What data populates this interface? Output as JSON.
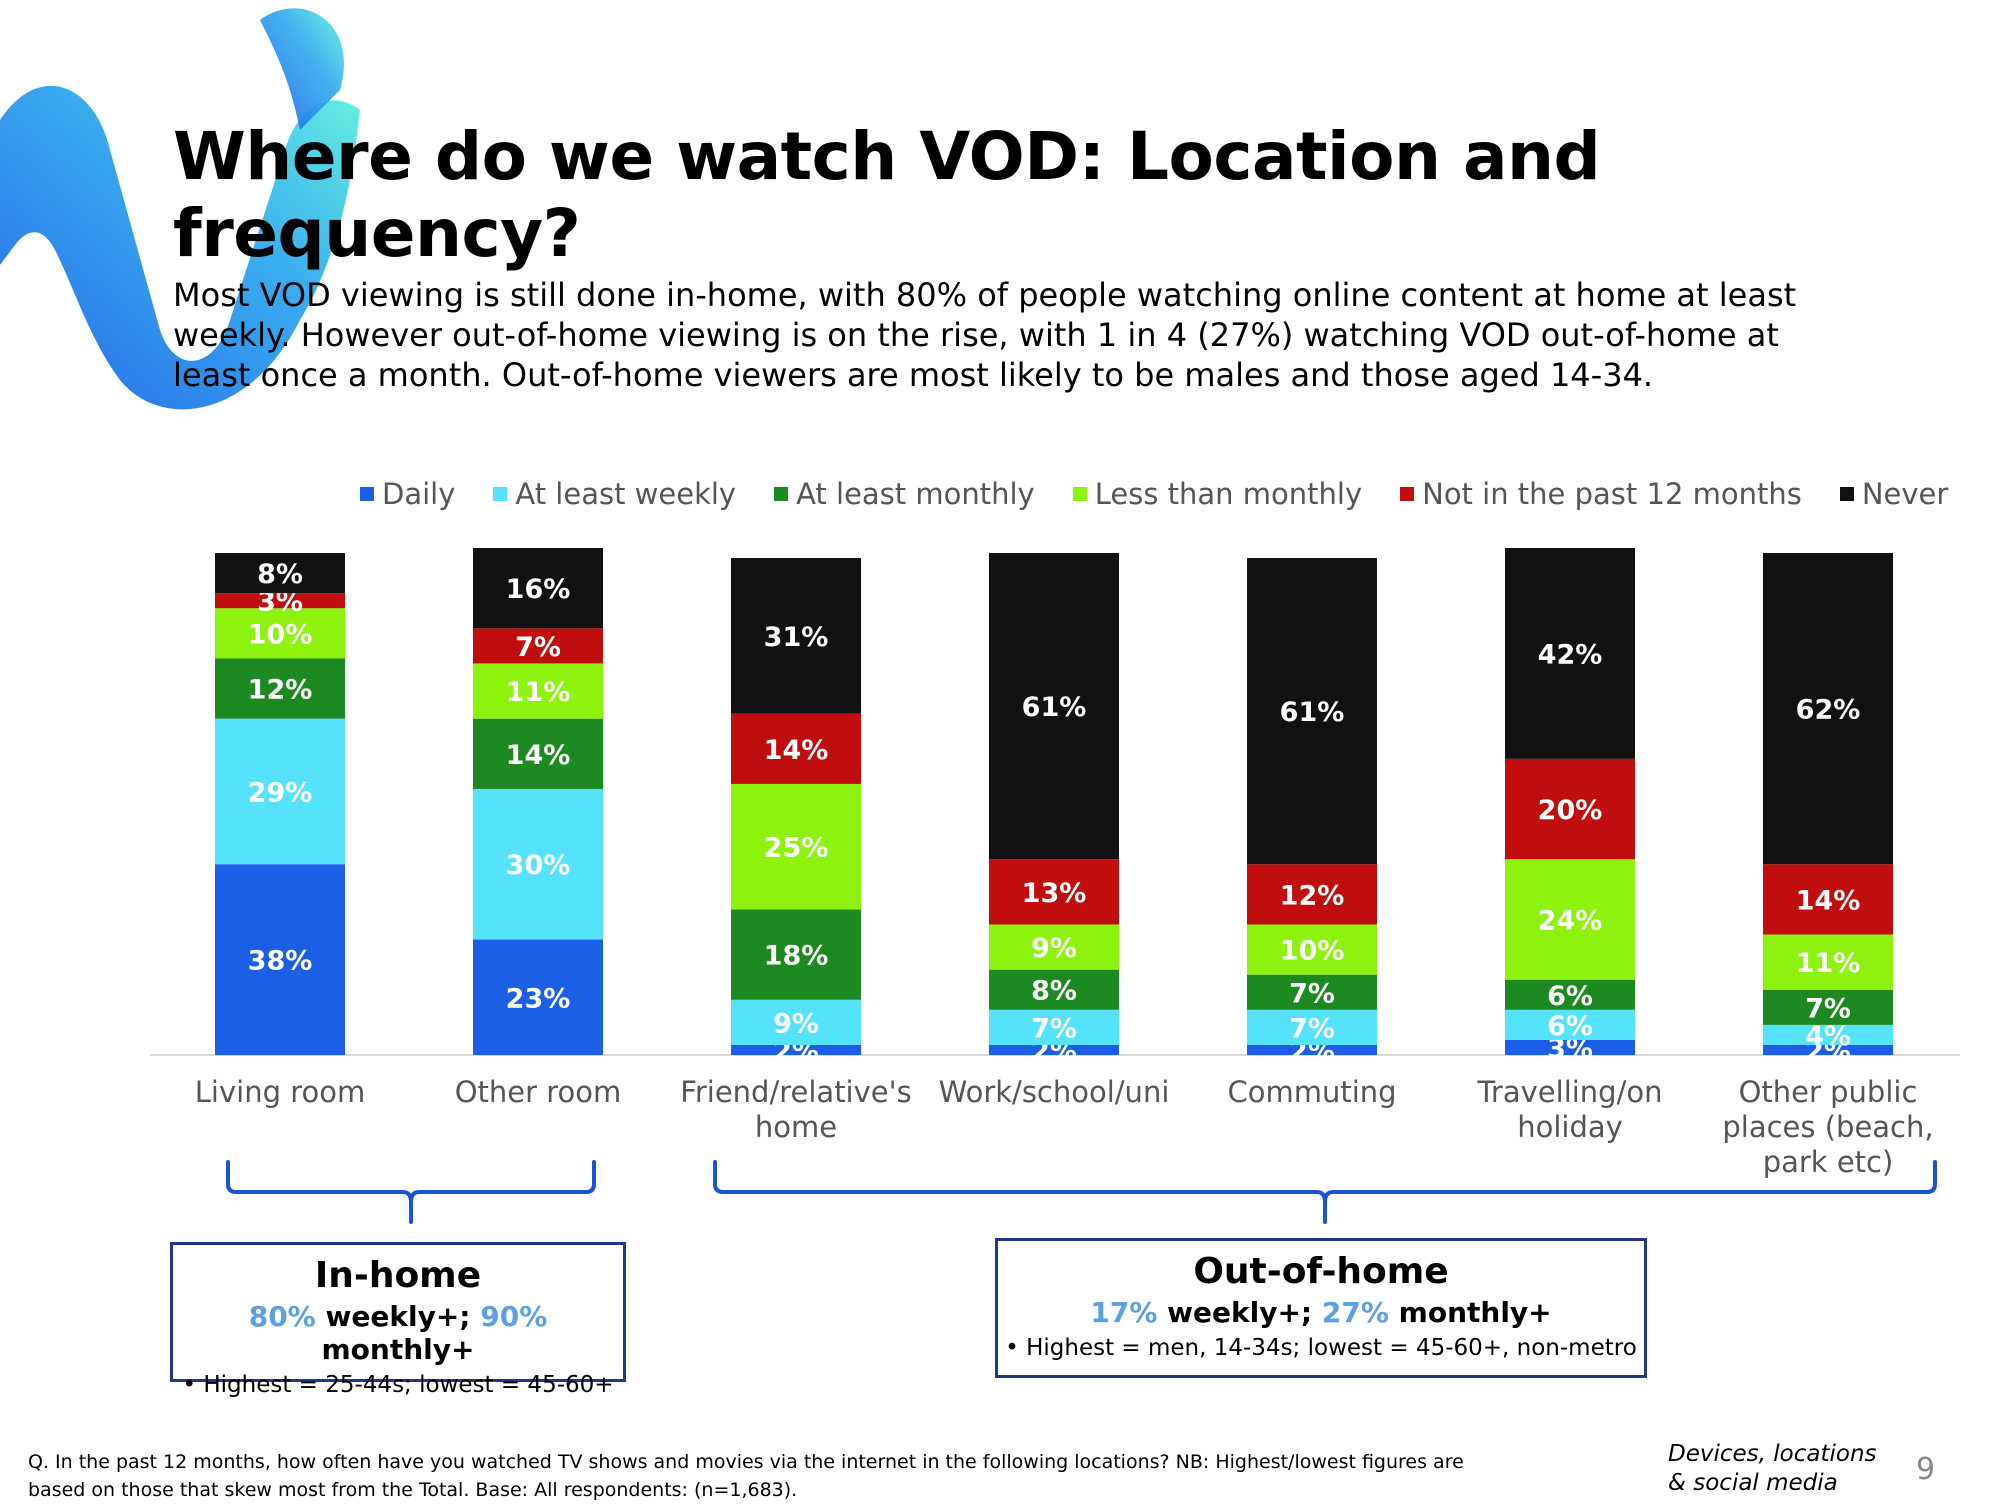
{
  "title": "Where do we watch VOD: Location and frequency?",
  "subtitle": "Most VOD viewing is still done in-home, with 80% of people watching online content at home at least weekly. However out-of-home viewing is on the rise, with 1 in 4 (27%) watching VOD out-of-home at least once a month. Out-of-home viewers are most likely to be males and those aged 14-34.",
  "colors": {
    "daily": "#1a5fe6",
    "weekly": "#55e2fb",
    "monthly": "#1d8a21",
    "less_monthly": "#8ef20f",
    "not_12m": "#c00e0e",
    "never": "#111111",
    "bracket": "#1a53d6",
    "box_border": "#1c3a8a"
  },
  "chart_data": {
    "type": "bar",
    "stacked": true,
    "orientation": "vertical",
    "categories": [
      "Living room",
      "Other room",
      "Friend/relative's home",
      "Work/school/uni",
      "Commuting",
      "Travelling/on holiday",
      "Other public places (beach, park etc)"
    ],
    "category_lines": [
      [
        "Living room"
      ],
      [
        "Other room"
      ],
      [
        "Friend/relative's",
        "home"
      ],
      [
        "Work/school/uni"
      ],
      [
        "Commuting"
      ],
      [
        "Travelling/on",
        "holiday"
      ],
      [
        "Other public",
        "places (beach,",
        "park etc)"
      ]
    ],
    "series": [
      {
        "name": "Daily",
        "color_key": "daily",
        "values": [
          38,
          23,
          2,
          2,
          2,
          3,
          2
        ]
      },
      {
        "name": "At least weekly",
        "color_key": "weekly",
        "values": [
          29,
          30,
          9,
          7,
          7,
          6,
          4
        ]
      },
      {
        "name": "At least monthly",
        "color_key": "monthly",
        "values": [
          12,
          14,
          18,
          8,
          7,
          6,
          7
        ]
      },
      {
        "name": "Less than monthly",
        "color_key": "less_monthly",
        "values": [
          10,
          11,
          25,
          9,
          10,
          24,
          11
        ]
      },
      {
        "name": "Not in the past 12 months",
        "color_key": "not_12m",
        "values": [
          3,
          7,
          14,
          13,
          12,
          20,
          14
        ]
      },
      {
        "name": "Never",
        "color_key": "never",
        "values": [
          8,
          16,
          31,
          61,
          61,
          42,
          62
        ]
      }
    ],
    "ylim": [
      0,
      100
    ],
    "value_suffix": "%",
    "legend_position": "top"
  },
  "groups": {
    "in_home": {
      "title": "In-home",
      "weekly_value": "80%",
      "weekly_label": " weekly+; ",
      "monthly_value": "90%",
      "monthly_label": " monthly+",
      "note": "• Highest = 25-44s; lowest = 45-60+"
    },
    "out_of_home": {
      "title": "Out-of-home",
      "weekly_value": "17%",
      "weekly_label": " weekly+; ",
      "monthly_value": "27%",
      "monthly_label": " monthly+",
      "note": "• Highest = men, 14-34s; lowest = 45-60+, non-metro"
    }
  },
  "footer": {
    "question": "Q. In the past 12 months, how often have you watched TV shows and movies via the internet in the following locations? NB: Highest/lowest figures are based on those that skew most from the Total. Base: All respondents: (n=1,683).",
    "section_line1": "Devices, locations",
    "section_line2": "& social media",
    "page_number": "9"
  }
}
